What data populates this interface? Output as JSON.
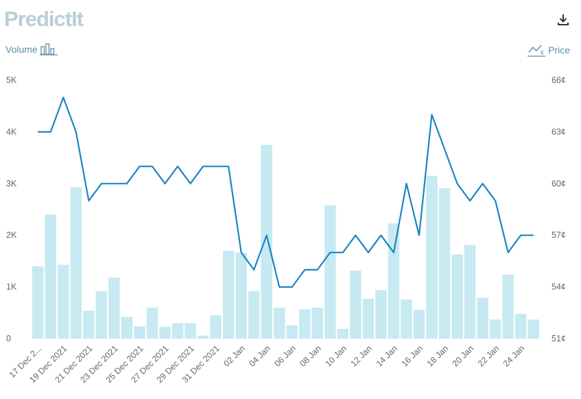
{
  "brand": {
    "logo_text": "PredictIt"
  },
  "toolbar": {
    "download_icon": "download-icon"
  },
  "legend": {
    "volume_label": "Volume",
    "volume_icon": "bar-chart-icon",
    "price_label": "Price",
    "price_icon": "line-chart-cents-icon"
  },
  "colors": {
    "bar": "#c7e9f1",
    "line": "#1b84c2",
    "text": "#5c6b72",
    "logo": "#b9cfd6"
  },
  "chart_data": {
    "type": "bar",
    "x_tick_labels": [
      "17 Dec 2...",
      "19 Dec 2021",
      "21 Dec 2021",
      "23 Dec 2021",
      "25 Dec 2021",
      "27 Dec 2021",
      "29 Dec 2021",
      "31 Dec 2021",
      "02 Jan",
      "04 Jan",
      "06 Jan",
      "08 Jan",
      "10 Jan",
      "12 Jan",
      "14 Jan",
      "16 Jan",
      "18 Jan",
      "20 Jan",
      "22 Jan",
      "24 Jan"
    ],
    "left_axis": {
      "ticks": [
        "0",
        "1K",
        "2K",
        "3K",
        "4K",
        "5K"
      ],
      "ylim": [
        0,
        5000
      ]
    },
    "right_axis": {
      "ticks": [
        "51¢",
        "54¢",
        "57¢",
        "60¢",
        "63¢",
        "66¢"
      ],
      "ylim": [
        51,
        66
      ]
    },
    "series": [
      {
        "name": "Volume",
        "type": "bar",
        "axis": "left",
        "values": [
          1400,
          2400,
          1430,
          2930,
          540,
          920,
          1180,
          420,
          240,
          600,
          230,
          300,
          300,
          60,
          450,
          1700,
          1670,
          920,
          3750,
          600,
          260,
          570,
          600,
          2580,
          190,
          1320,
          770,
          940,
          2230,
          760,
          560,
          3150,
          2910,
          1630,
          1810,
          790,
          370,
          1240,
          480,
          370
        ]
      },
      {
        "name": "Price",
        "type": "line",
        "axis": "right",
        "values": [
          63,
          63,
          65,
          63,
          59,
          60,
          60,
          60,
          61,
          61,
          60,
          61,
          60,
          61,
          61,
          61,
          56,
          55,
          57,
          54,
          54,
          55,
          55,
          56,
          56,
          57,
          56,
          57,
          56,
          60,
          57,
          64,
          62,
          60,
          59,
          60,
          59,
          56,
          57,
          57
        ]
      }
    ]
  }
}
